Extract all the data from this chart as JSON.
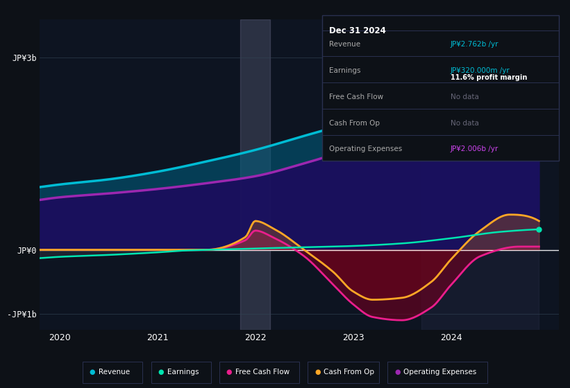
{
  "bg_color": "#0d1117",
  "plot_bg_color": "#0d1421",
  "title_box": {
    "date": "Dec 31 2024",
    "rows": [
      {
        "label": "Revenue",
        "value": "JP¥2.762b /yr",
        "value_color": "#00bcd4",
        "sub": null
      },
      {
        "label": "Earnings",
        "value": "JP¥320.000m /yr",
        "value_color": "#00bcd4",
        "sub": "11.6% profit margin"
      },
      {
        "label": "Free Cash Flow",
        "value": "No data",
        "value_color": "#666677",
        "sub": null
      },
      {
        "label": "Cash From Op",
        "value": "No data",
        "value_color": "#666677",
        "sub": null
      },
      {
        "label": "Operating Expenses",
        "value": "JP¥2.006b /yr",
        "value_color": "#cc44ee",
        "sub": null
      }
    ]
  },
  "ylim": [
    -1250000000.0,
    3600000000.0
  ],
  "revenue_color": "#00bcd4",
  "earnings_color": "#00e5b0",
  "fcf_color": "#e91e8c",
  "cfo_color": "#ffa726",
  "opex_color": "#9c27b0",
  "legend_items": [
    {
      "label": "Revenue",
      "color": "#00bcd4"
    },
    {
      "label": "Earnings",
      "color": "#00e5b0"
    },
    {
      "label": "Free Cash Flow",
      "color": "#e91e8c"
    },
    {
      "label": "Cash From Op",
      "color": "#ffa726"
    },
    {
      "label": "Operating Expenses",
      "color": "#9c27b0"
    }
  ]
}
